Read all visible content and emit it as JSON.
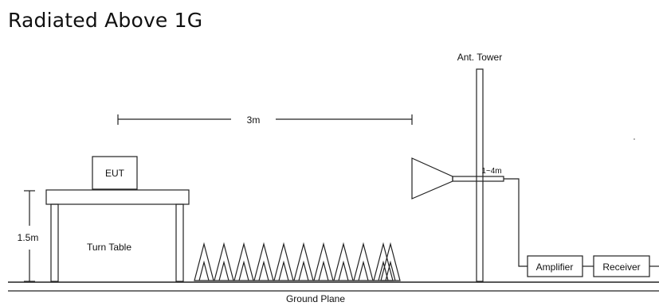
{
  "title": "Radiated Above 1G",
  "labels": {
    "ant_tower": "Ant. Tower",
    "distance": "3m",
    "height_range": "1~4m",
    "eut": "EUT",
    "table_height": "1.5m",
    "turn_table": "Turn Table",
    "amplifier": "Amplifier",
    "receiver": "Receiver",
    "ground_plane": "Ground Plane"
  },
  "absorbers": {
    "count": 11
  },
  "colors": {
    "line": "#222222",
    "background": "#ffffff"
  }
}
